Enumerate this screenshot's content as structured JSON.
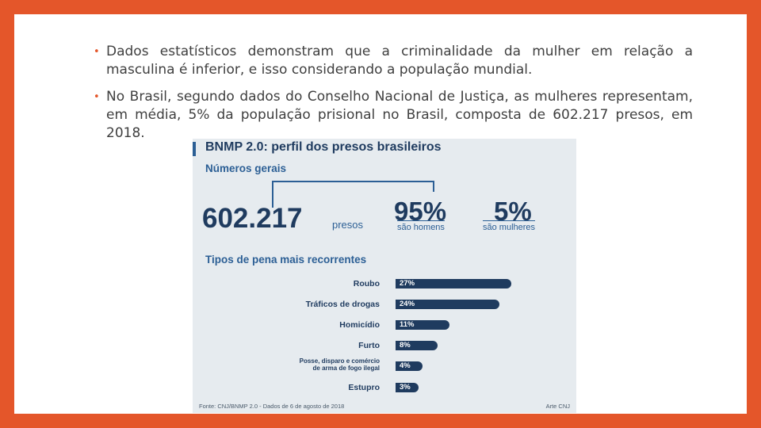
{
  "slide": {
    "bullets": [
      {
        "text": "Dados estatísticos demonstram que a criminalidade da mulher em relação a masculina é inferior, e isso considerando a população mundial."
      },
      {
        "text": "No Brasil, segundo dados do Conselho Nacional de Justiça, as mulheres representam, em média, 5% da população prisional no Brasil, composta de 602.217 presos, em 2018."
      }
    ],
    "bullet_glyph": "•",
    "accent_color": "#e4562a"
  },
  "infographic": {
    "title": "BNMP 2.0: perfil dos presos brasileiros",
    "section1": "Números gerais",
    "total": "602.217",
    "total_label": "presos",
    "men_pct": "95%",
    "men_label": "são homens",
    "women_pct": "5%",
    "women_label": "são mulheres",
    "section2": "Tipos de pena mais recorrentes",
    "footer": "Fonte: CNJ/BNMP 2.0 - Dados de 6 de agosto de 2018",
    "credit": "Arte CNJ",
    "bar_color": "#1f3b5f"
  },
  "chart_data": {
    "type": "bar",
    "title": "Tipos de pena mais recorrentes",
    "orientation": "horizontal",
    "categories": [
      "Roubo",
      "Tráficos de drogas",
      "Homicídio",
      "Furto",
      "Posse, disparo e comércio de arma de fogo ilegal",
      "Estupro"
    ],
    "category_lines": [
      [
        "Roubo"
      ],
      [
        "Tráficos de drogas"
      ],
      [
        "Homicídio"
      ],
      [
        "Furto"
      ],
      [
        "Posse, disparo e comércio",
        "de arma de fogo ilegal"
      ],
      [
        "Estupro"
      ]
    ],
    "values": [
      27,
      24,
      11,
      8,
      4,
      3
    ],
    "value_labels": [
      "27%",
      "24%",
      "11%",
      "8%",
      "4%",
      "3%"
    ],
    "xlim": [
      0,
      27
    ]
  }
}
